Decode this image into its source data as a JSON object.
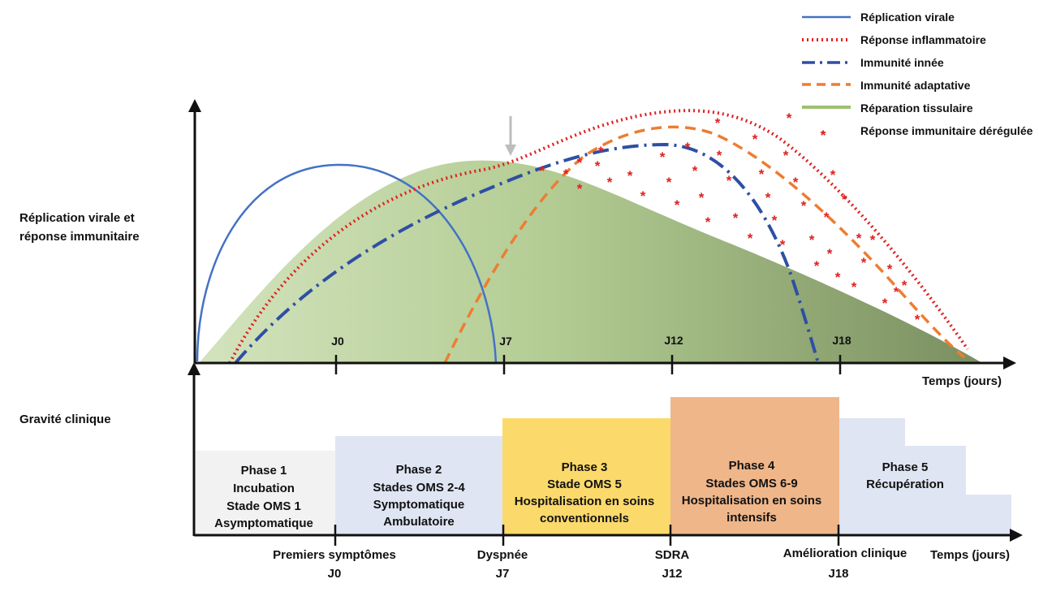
{
  "y_axis_label": [
    "Réplication virale et",
    "réponse immunitaire"
  ],
  "severity_label": "Gravité clinique",
  "time_axis_label": "Temps (jours)",
  "top_ticks": [
    "J0",
    "J7",
    "J12",
    "J18"
  ],
  "legend": [
    {
      "label": "Réplication virale",
      "style": "solid",
      "color": "#4472c4"
    },
    {
      "label": "Réponse inflammatoire",
      "style": "dotted",
      "color": "#e02020"
    },
    {
      "label": "Immunité innée",
      "style": "dash-dot",
      "color": "#2e4fa3"
    },
    {
      "label": "Immunité adaptative",
      "style": "dashed",
      "color": "#ed7d31"
    },
    {
      "label": "Réparation tissulaire",
      "style": "area",
      "color": "#9dc06f"
    },
    {
      "label": "Réponse immunitaire dérégulée",
      "style": "asterisk",
      "color": "#e02020"
    }
  ],
  "phases": [
    {
      "lines": [
        "Phase 1",
        "Incubation",
        "Stade OMS 1",
        "Asymptomatique"
      ],
      "color": "#f2f2f2"
    },
    {
      "lines": [
        "Phase 2",
        "Stades OMS 2-4",
        "Symptomatique",
        "Ambulatoire"
      ],
      "color": "#dfe5f3"
    },
    {
      "lines": [
        "Phase 3",
        "Stade OMS 5",
        "Hospitalisation en soins",
        "conventionnels"
      ],
      "color": "#fbd96b"
    },
    {
      "lines": [
        "Phase 4",
        "Stades OMS 6-9",
        "Hospitalisation en soins",
        "intensifs"
      ],
      "color": "#efb68a"
    },
    {
      "lines": [
        "Phase 5",
        "Récupération"
      ],
      "color": "#dfe5f3"
    }
  ],
  "events": [
    {
      "label": "Premiers symptômes",
      "day": "J0"
    },
    {
      "label": "Dyspnée",
      "day": "J7"
    },
    {
      "label": "SDRA",
      "day": "J12"
    },
    {
      "label": "Amélioration clinique",
      "day": "J18"
    }
  ],
  "colors": {
    "axis": "#111111",
    "viral": "#4472c4",
    "inflammatory": "#e02020",
    "innate": "#2e4fa3",
    "adaptive": "#ed7d31",
    "repair_light": "#c4d9a8",
    "repair_dark": "#7f9465",
    "arrow": "#bdbdbd"
  }
}
